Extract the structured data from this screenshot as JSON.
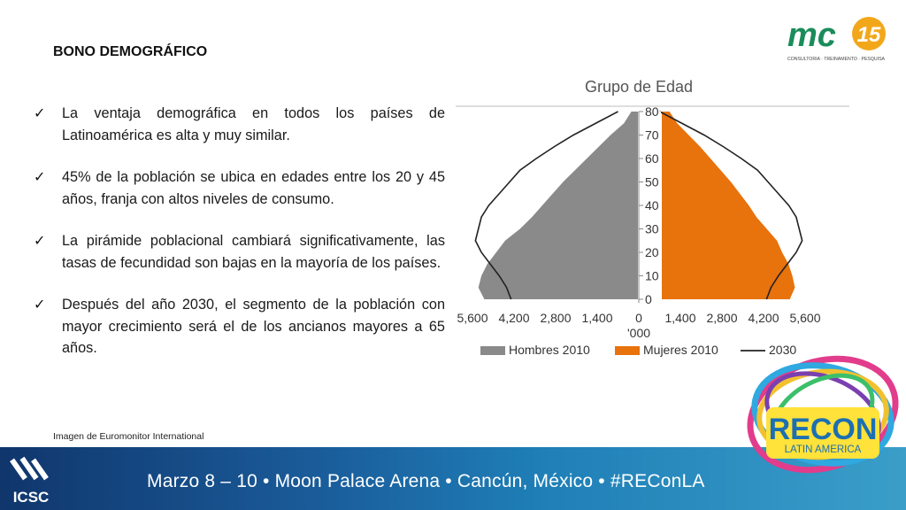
{
  "slide": {
    "title": "BONO DEMOGRÁFICO",
    "bullets": [
      "La ventaja demográfica en todos los países de Latinoamérica es alta y muy similar.",
      "45% de la población se ubica en edades entre los 20 y 45 años,  franja con altos niveles de consumo.",
      "La pirámide poblacional cambiará significativamente, las tasas de fecundidad son bajas en la mayoría de los países.",
      "Después del año 2030, el segmento de la población con mayor crecimiento será el de los ancianos mayores a 65 años."
    ],
    "caption": "Imagen de Euromonitor International"
  },
  "logos": {
    "mc_text": "mc",
    "mc_number": "15",
    "mc_tagline": "CONSULTORIA · TREINAMENTO · PESQUISA",
    "recon_title": "RECON",
    "recon_subtitle": "LATIN AMERICA",
    "icsc": "ICSC"
  },
  "footer": {
    "text": "Marzo 8 – 10 • Moon Palace Arena • Cancún, México • #REConLA"
  },
  "colors": {
    "men": "#8a8a8a",
    "women": "#e8720c",
    "line2030": "#222222",
    "footer_start": "#10366c",
    "footer_end": "#3a9ec9"
  },
  "chart_data": {
    "type": "population-pyramid",
    "title": "Grupo de Edad",
    "x_unit_label": "'000",
    "x_ticks": [
      "5,600",
      "4,200",
      "2,800",
      "1,400",
      "0",
      "1,400",
      "2,800",
      "4,200",
      "5,600"
    ],
    "y_ticks": [
      "0",
      "10",
      "20",
      "30",
      "40",
      "50",
      "60",
      "70",
      "80"
    ],
    "xlim": [
      -5600,
      5600
    ],
    "ylim": [
      0,
      80
    ],
    "legend": [
      {
        "name": "Hombres 2010",
        "kind": "box",
        "color": "#8a8a8a"
      },
      {
        "name": "Mujeres 2010",
        "kind": "box",
        "color": "#e8720c"
      },
      {
        "name": "2030",
        "kind": "line",
        "color": "#222222"
      }
    ],
    "age": [
      0,
      5,
      10,
      15,
      20,
      25,
      30,
      35,
      40,
      45,
      50,
      55,
      60,
      65,
      70,
      75,
      80
    ],
    "series": [
      {
        "name": "Hombres 2010",
        "values": [
          5200,
          5400,
          5300,
          5100,
          4800,
          4500,
          4000,
          3600,
          3250,
          2900,
          2550,
          2150,
          1750,
          1350,
          950,
          500,
          250
        ]
      },
      {
        "name": "Mujeres 2010",
        "values": [
          5000,
          5200,
          5100,
          4950,
          4700,
          4500,
          4100,
          3700,
          3400,
          3050,
          2700,
          2300,
          1900,
          1500,
          1050,
          600,
          300
        ]
      },
      {
        "name": "2030",
        "values": [
          4300,
          4450,
          4700,
          5000,
          5300,
          5500,
          5400,
          5300,
          5050,
          4700,
          4350,
          4000,
          3450,
          2850,
          2200,
          1450,
          700
        ]
      }
    ]
  }
}
